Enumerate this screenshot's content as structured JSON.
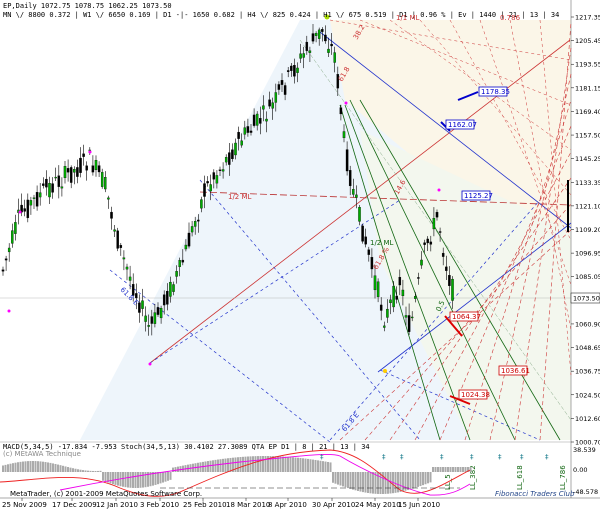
{
  "header": {
    "symbol_line": "EP,Daily  1072.75 1078.75 1062.25 1073.50",
    "tf_line": "MN \\/ 8800  0.372 | W1 \\/ 6650  0.169 | D1 -|- 1650  0.682 | H4 \\/ 825  0.424 | H1 \\/ 675  0.519 | D1 | 0.96 % | Ev | 1440 | 21 | 13 | 34"
  },
  "watermark": "(c) MEtAWA Technique",
  "copyright": "MetaTrader, (c) 2001-2009 MetaQuotes Software Corp.",
  "club_logo": "Fibonacci Traders Club",
  "indicator_header": "MACD(5,34,5) -17.834 -7.953  Stoch(34,5,13) 30.4102 27.3089  QTA EP D1 | 8 | 21 | 13 | 34",
  "price_axis": {
    "labels": [
      "1217.35",
      "1205.45",
      "1193.55",
      "1181.15",
      "1169.40",
      "1157.50",
      "1145.25",
      "1133.35",
      "1121.10",
      "1109.20",
      "1096.95",
      "1085.05",
      "1073.50",
      "1060.90",
      "1048.65",
      "1036.75",
      "1024.50",
      "1012.60",
      "1000.70"
    ],
    "current_price": "1073.50"
  },
  "indicator_axis": {
    "labels": [
      "38.539",
      "0.00",
      "-48.578"
    ]
  },
  "time_axis": {
    "labels": [
      "25 Nov 2009",
      "17 Dec 2009",
      "12 Jan 2010",
      "3 Feb 2010",
      "25 Feb 2010",
      "18 Mar 2010",
      "8 Apr 2010",
      "30 Apr 2010",
      "24 May 2010",
      "15 Jun 2010"
    ]
  },
  "boxes": [
    {
      "text": "1178.35",
      "color": "#0000cc"
    },
    {
      "text": "1162.07",
      "color": "#0000cc"
    },
    {
      "text": "1125.27",
      "color": "#0000cc"
    },
    {
      "text": "1064.37",
      "color": "#cc0000"
    },
    {
      "text": "1036.61",
      "color": "#cc0000"
    },
    {
      "text": "1024.38",
      "color": "#cc0000"
    }
  ],
  "line_labels": {
    "half_ml": "1/2 ML",
    "ml": "1/2 ML",
    "fib_red": [
      "61.8",
      "38.2",
      "61.8 %",
      "14.6"
    ],
    "fib_blue": [
      "61.8 E",
      "61.8 E"
    ],
    "ll": [
      "LL_5",
      "LL_382",
      "LL_618",
      "LL_786"
    ],
    "fan": "0.5",
    "top": [
      "1/1 ML",
      "0.786"
    ]
  },
  "colors": {
    "bull": "#00aa00",
    "bear": "#000000",
    "fib_red": "#cc2222",
    "fib_blue": "#2233cc",
    "green": "#117711"
  }
}
